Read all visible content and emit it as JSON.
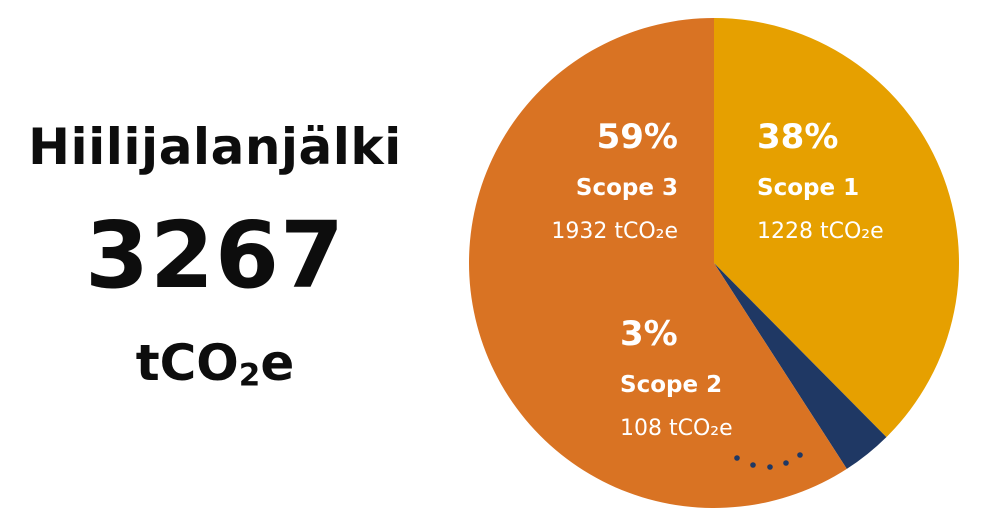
{
  "summary": {
    "title": "Hiilijalanjälki",
    "total": "3267",
    "unit_prefix": "tCO",
    "unit_sub": "2",
    "unit_suffix": "e"
  },
  "chart_data": {
    "type": "pie",
    "title": "",
    "unit": "tCO₂e",
    "total": 3267,
    "start_angle_deg": 0,
    "direction": "clockwise",
    "slices": [
      {
        "label": "Scope 1",
        "percent_label": "38%",
        "value": 1228,
        "value_label": "1228 tCO₂e",
        "color": "#e6a000"
      },
      {
        "label": "Scope 2",
        "percent_label": "3%",
        "value": 108,
        "value_label": "108 tCO₂e",
        "color": "#1f3864"
      },
      {
        "label": "Scope 3",
        "percent_label": "59%",
        "value": 1932,
        "value_label": "1932 tCO₂e",
        "color": "#d97323"
      }
    ],
    "label_text_color": "#ffffff",
    "connector_color": "#1f3864"
  }
}
